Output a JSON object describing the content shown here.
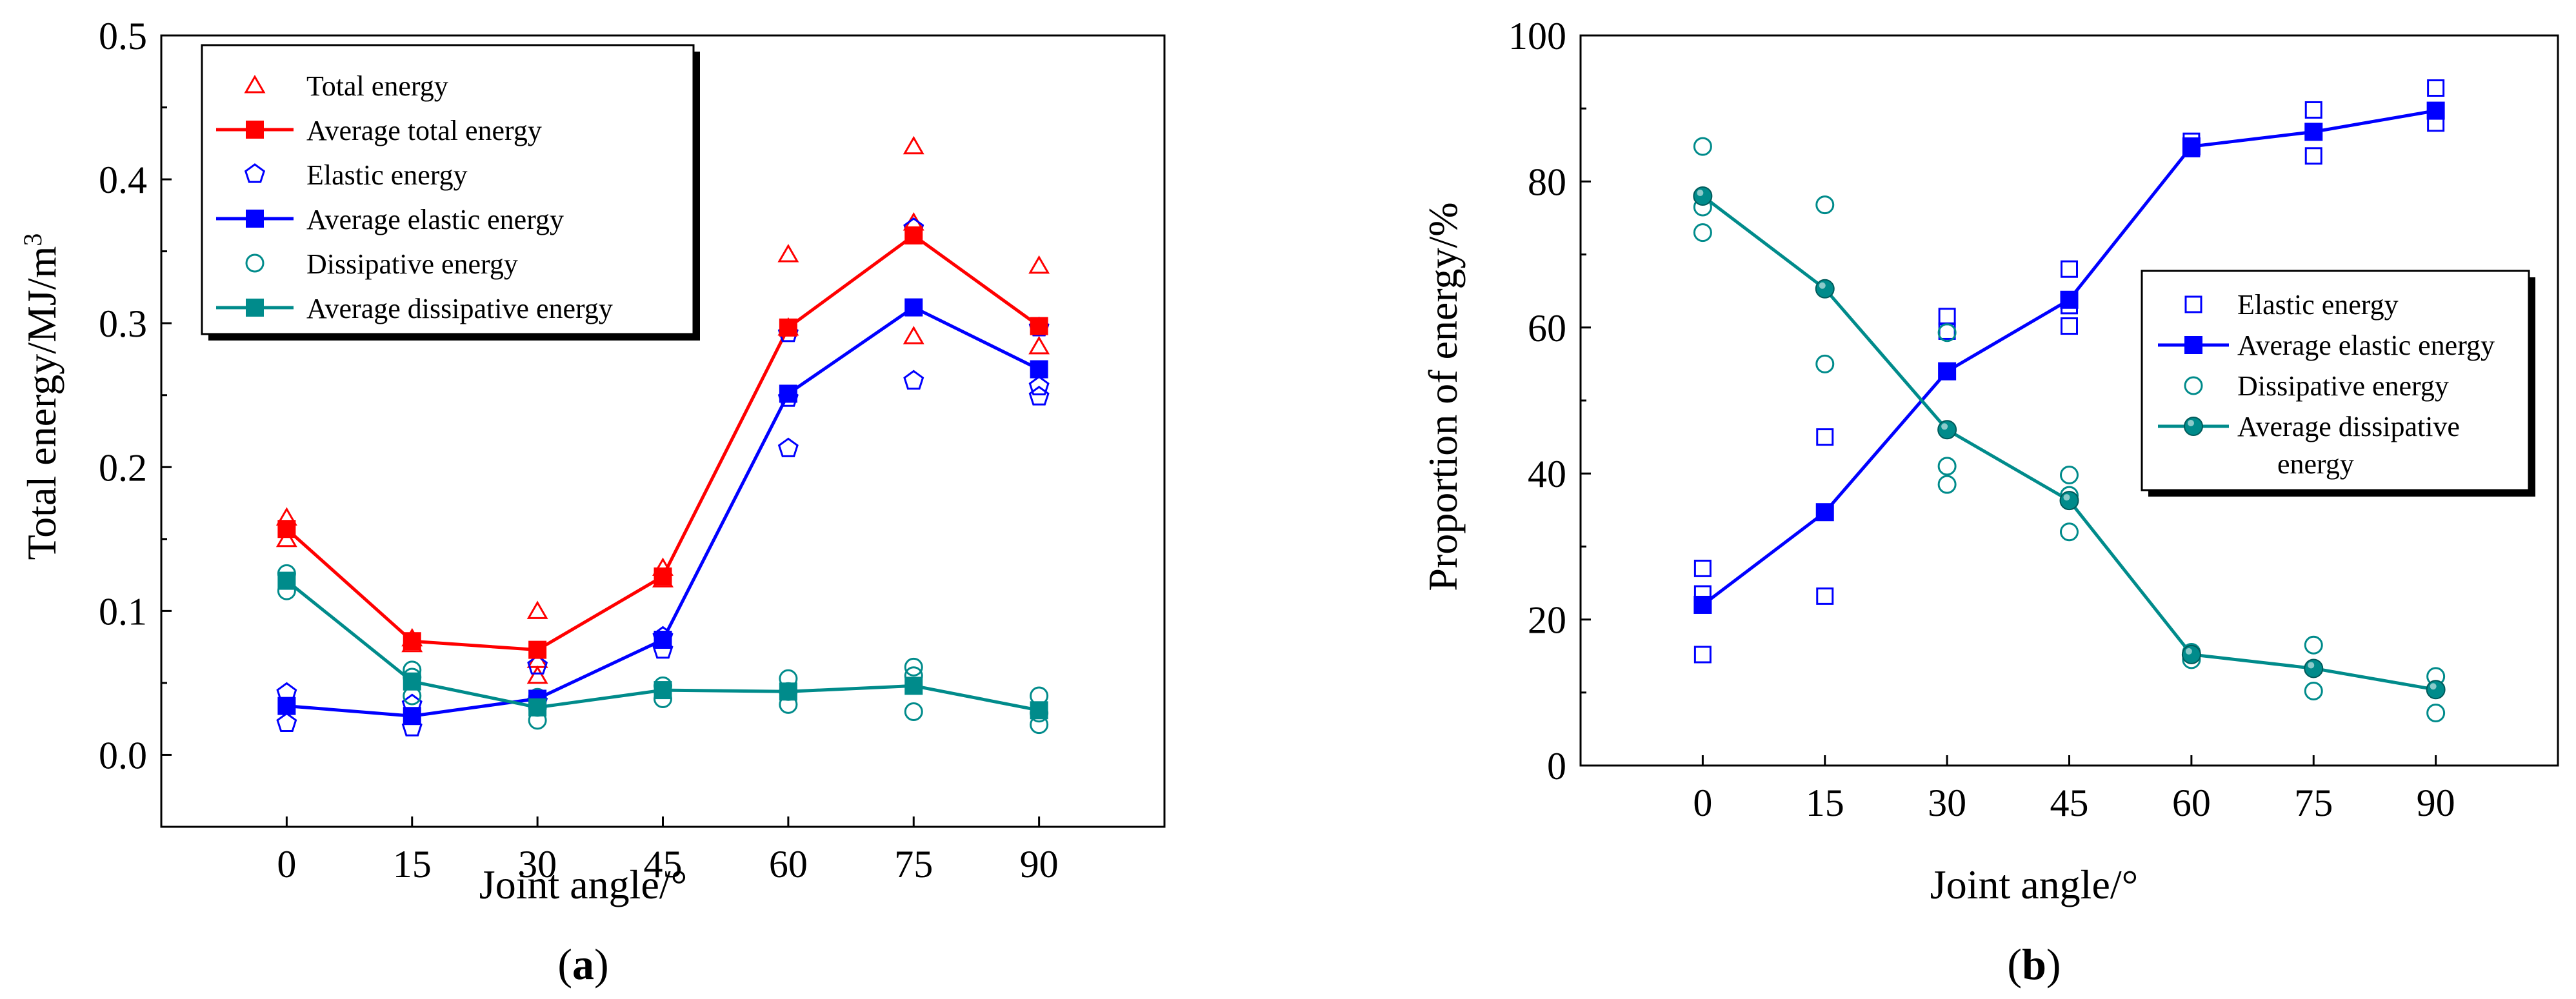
{
  "chart_data": [
    {
      "type": "line",
      "panel_label": "(a)",
      "panel_open": "(",
      "panel_letter": "a",
      "panel_close": ")",
      "xlabel": "Joint angle/°",
      "ylabel_main": "Total energy/MJ/m",
      "ylabel_sup": "3",
      "ylim": [
        -0.05,
        0.5
      ],
      "xticks": [
        0,
        15,
        30,
        45,
        60,
        75,
        90
      ],
      "yticks": [
        0.0,
        0.1,
        0.2,
        0.3,
        0.4,
        0.5
      ],
      "ytick_labels": [
        "0.0",
        "0.1",
        "0.2",
        "0.3",
        "0.4",
        "0.5"
      ],
      "legend_position": "top-left",
      "colors": {
        "red": "#ff0000",
        "blue": "#0000ff",
        "teal": "#008b8b"
      },
      "series": [
        {
          "name": "Total energy",
          "kind": "scatter",
          "marker": "triangle",
          "color": "#ff0000",
          "points": [
            [
              0,
              0.165
            ],
            [
              0,
              0.15
            ],
            [
              15,
              0.081
            ],
            [
              15,
              0.077
            ],
            [
              30,
              0.1
            ],
            [
              30,
              0.066
            ],
            [
              30,
              0.055
            ],
            [
              45,
              0.13
            ],
            [
              45,
              0.122
            ],
            [
              60,
              0.348
            ],
            [
              60,
              0.297
            ],
            [
              75,
              0.423
            ],
            [
              75,
              0.37
            ],
            [
              75,
              0.291
            ],
            [
              90,
              0.34
            ],
            [
              90,
              0.284
            ]
          ]
        },
        {
          "name": "Average total energy",
          "kind": "line",
          "marker": "square",
          "color": "#ff0000",
          "x": [
            0,
            15,
            30,
            45,
            60,
            75,
            90
          ],
          "values": [
            0.157,
            0.079,
            0.073,
            0.124,
            0.297,
            0.361,
            0.298
          ]
        },
        {
          "name": "Elastic energy",
          "kind": "scatter",
          "marker": "pentagon",
          "color": "#0000ff",
          "points": [
            [
              0,
              0.043
            ],
            [
              0,
              0.022
            ],
            [
              15,
              0.035
            ],
            [
              15,
              0.019
            ],
            [
              30,
              0.062
            ],
            [
              30,
              0.037
            ],
            [
              45,
              0.082
            ],
            [
              45,
              0.073
            ],
            [
              60,
              0.293
            ],
            [
              60,
              0.248
            ],
            [
              60,
              0.213
            ],
            [
              75,
              0.366
            ],
            [
              75,
              0.26
            ],
            [
              90,
              0.297
            ],
            [
              90,
              0.256
            ],
            [
              90,
              0.249
            ]
          ]
        },
        {
          "name": "Average elastic energy",
          "kind": "line",
          "marker": "square",
          "color": "#0000ff",
          "x": [
            0,
            15,
            30,
            45,
            60,
            75,
            90
          ],
          "values": [
            0.034,
            0.027,
            0.039,
            0.08,
            0.251,
            0.311,
            0.268
          ]
        },
        {
          "name": "Dissipative energy",
          "kind": "scatter",
          "marker": "circle",
          "color": "#008b8b",
          "points": [
            [
              0,
              0.126
            ],
            [
              0,
              0.114
            ],
            [
              15,
              0.059
            ],
            [
              15,
              0.054
            ],
            [
              15,
              0.041
            ],
            [
              30,
              0.04
            ],
            [
              30,
              0.033
            ],
            [
              30,
              0.024
            ],
            [
              45,
              0.048
            ],
            [
              45,
              0.039
            ],
            [
              60,
              0.053
            ],
            [
              60,
              0.044
            ],
            [
              60,
              0.035
            ],
            [
              75,
              0.061
            ],
            [
              75,
              0.055
            ],
            [
              75,
              0.03
            ],
            [
              90,
              0.041
            ],
            [
              90,
              0.029
            ],
            [
              90,
              0.021
            ]
          ]
        },
        {
          "name": "Average dissipative energy",
          "kind": "line",
          "marker": "square",
          "color": "#008b8b",
          "x": [
            0,
            15,
            30,
            45,
            60,
            75,
            90
          ],
          "values": [
            0.121,
            0.051,
            0.033,
            0.045,
            0.044,
            0.048,
            0.031
          ]
        }
      ]
    },
    {
      "type": "line",
      "panel_label": "(b)",
      "panel_open": "(",
      "panel_letter": "b",
      "panel_close": ")",
      "xlabel": "Joint angle/°",
      "ylabel_main": "Proportion of energy/%",
      "ylim": [
        0,
        100
      ],
      "xticks": [
        0,
        15,
        30,
        45,
        60,
        75,
        90
      ],
      "yticks": [
        0,
        20,
        40,
        60,
        80,
        100
      ],
      "ytick_labels": [
        "0",
        "20",
        "40",
        "60",
        "80",
        "100"
      ],
      "legend_position": "middle-right",
      "colors": {
        "blue": "#0000ff",
        "teal": "#008b8b"
      },
      "series": [
        {
          "name": "Elastic energy",
          "kind": "scatter",
          "marker": "square-open",
          "color": "#0000ff",
          "points": [
            [
              0,
              27
            ],
            [
              0,
              23.5
            ],
            [
              0,
              15.2
            ],
            [
              15,
              45
            ],
            [
              15,
              23.2
            ],
            [
              30,
              61.5
            ],
            [
              30,
              59.5
            ],
            [
              45,
              68
            ],
            [
              45,
              63
            ],
            [
              45,
              60.2
            ],
            [
              60,
              85.5
            ],
            [
              60,
              84.5
            ],
            [
              75,
              89.8
            ],
            [
              75,
              83.5
            ],
            [
              90,
              92.8
            ],
            [
              90,
              88
            ]
          ]
        },
        {
          "name": "Average elastic energy",
          "kind": "line",
          "marker": "square",
          "color": "#0000ff",
          "x": [
            0,
            15,
            30,
            45,
            60,
            75,
            90
          ],
          "values": [
            22,
            34.7,
            54,
            63.8,
            84.8,
            86.8,
            89.7
          ]
        },
        {
          "name": "Dissipative energy",
          "kind": "scatter",
          "marker": "circle-open",
          "color": "#008b8b",
          "points": [
            [
              0,
              84.8
            ],
            [
              0,
              76.5
            ],
            [
              0,
              73
            ],
            [
              15,
              76.8
            ],
            [
              15,
              55
            ],
            [
              30,
              59.3
            ],
            [
              30,
              41
            ],
            [
              30,
              38.5
            ],
            [
              45,
              39.8
            ],
            [
              45,
              37
            ],
            [
              45,
              32
            ],
            [
              60,
              15.5
            ],
            [
              60,
              14.5
            ],
            [
              75,
              16.5
            ],
            [
              75,
              10.2
            ],
            [
              90,
              12.2
            ],
            [
              90,
              7.2
            ]
          ]
        },
        {
          "name": "Average  dissipative\nenergy",
          "kind": "line",
          "marker": "circle-filled",
          "color": "#008b8b",
          "x": [
            0,
            15,
            30,
            45,
            60,
            75,
            90
          ],
          "values": [
            78,
            65.3,
            46,
            36.3,
            15.2,
            13.3,
            10.4
          ]
        }
      ]
    }
  ]
}
